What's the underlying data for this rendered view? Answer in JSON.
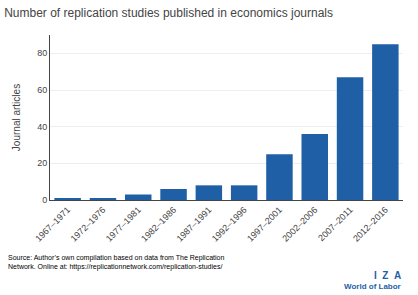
{
  "chart_data": {
    "type": "bar",
    "title": "Number of replication studies published in economics journals",
    "ylabel": "Journal articles",
    "categories": [
      "1967–1971",
      "1972–1976",
      "1977–1981",
      "1982–1986",
      "1987–1991",
      "1992–1996",
      "1997–2001",
      "2002–2006",
      "2007–2011",
      "2012–2016"
    ],
    "values": [
      1,
      1,
      3,
      6,
      8,
      8,
      25,
      36,
      67,
      85
    ],
    "color": "#1F5FA6",
    "ylim": [
      0,
      90
    ],
    "yticks": [
      0,
      20,
      40,
      60,
      80
    ],
    "grid": true,
    "annotations": [
      "Source: Author’s own compilation based on data from The Replication\nNetwork. Online at: https://replicationnetwork.com/replication-studies/",
      "I  Z  A",
      "World of Labor"
    ]
  }
}
